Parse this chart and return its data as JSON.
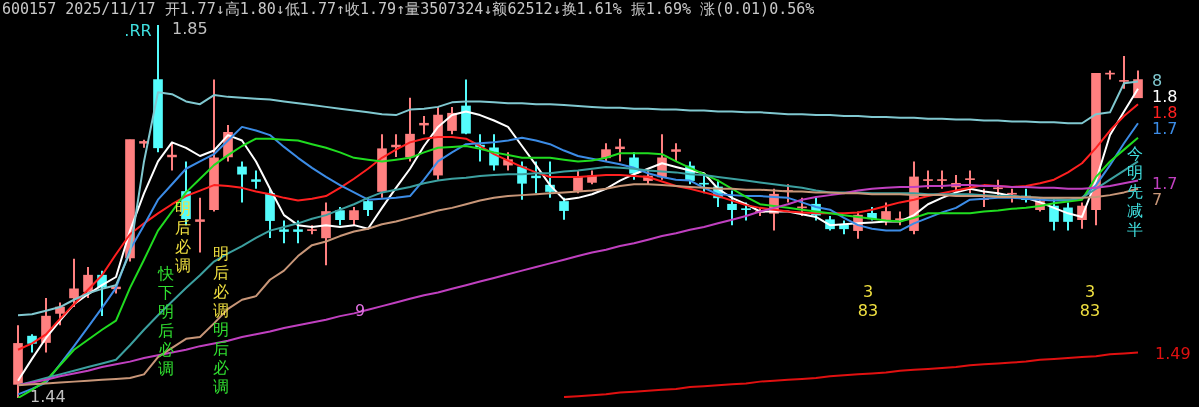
{
  "chart_data": {
    "type": "candlestick",
    "title": "600157 2025/11/17 开1.77↓高1.80↓低1.77↑收1.79↑量3507324↓额62512↓换1.61% 振1.69% 涨(0.01)0.56%",
    "categories": [
      null,
      null,
      null,
      null,
      null,
      null,
      null,
      null,
      null,
      null,
      null,
      null,
      null,
      null,
      null,
      null,
      null,
      null,
      null,
      null,
      null,
      null,
      null,
      null,
      null,
      null,
      null,
      null,
      null,
      null,
      null,
      null,
      null,
      null,
      null,
      null,
      null,
      null,
      null,
      null,
      null,
      null,
      null,
      null,
      null,
      null,
      null,
      null,
      null,
      null,
      null,
      null,
      null,
      null,
      null,
      null,
      null,
      null,
      null,
      null,
      null,
      null,
      null,
      null,
      null,
      null,
      null,
      null,
      null,
      null,
      null,
      null,
      null,
      null,
      null,
      null,
      null,
      null,
      null,
      null,
      null
    ],
    "ohlc": [
      [
        1.455,
        1.52,
        1.44,
        1.5
      ],
      [
        1.508,
        1.51,
        1.49,
        1.5
      ],
      [
        1.501,
        1.55,
        1.49,
        1.53
      ],
      [
        1.533,
        1.545,
        1.52,
        1.54
      ],
      [
        1.55,
        1.593,
        1.54,
        1.56
      ],
      [
        1.557,
        1.584,
        1.55,
        1.575
      ],
      [
        1.575,
        1.58,
        1.53,
        1.562
      ],
      [
        1.56,
        1.565,
        1.555,
        1.562
      ],
      [
        1.594,
        1.724,
        1.59,
        1.724
      ],
      [
        1.72,
        1.724,
        1.715,
        1.722
      ],
      [
        1.79,
        1.85,
        1.71,
        1.715
      ],
      [
        1.705,
        1.72,
        1.69,
        1.707
      ],
      [
        1.667,
        1.7,
        1.63,
        1.637
      ],
      [
        1.634,
        1.66,
        1.6,
        1.636
      ],
      [
        1.647,
        1.79,
        1.645,
        1.704
      ],
      [
        1.705,
        1.74,
        1.7,
        1.732
      ],
      [
        1.694,
        1.7,
        1.655,
        1.686
      ],
      [
        1.68,
        1.69,
        1.67,
        1.678
      ],
      [
        1.665,
        1.67,
        1.616,
        1.635
      ],
      [
        1.625,
        1.635,
        1.61,
        1.623
      ],
      [
        1.625,
        1.635,
        1.61,
        1.623
      ],
      [
        1.624,
        1.63,
        1.62,
        1.625
      ],
      [
        1.616,
        1.655,
        1.586,
        1.645
      ],
      [
        1.646,
        1.65,
        1.63,
        1.636
      ],
      [
        1.636,
        1.65,
        1.63,
        1.646
      ],
      [
        1.656,
        1.66,
        1.64,
        1.647
      ],
      [
        1.667,
        1.73,
        1.66,
        1.714
      ],
      [
        1.716,
        1.73,
        1.705,
        1.718
      ],
      [
        1.705,
        1.77,
        1.7,
        1.73
      ],
      [
        1.74,
        1.75,
        1.73,
        1.742
      ],
      [
        1.685,
        1.76,
        1.68,
        1.751
      ],
      [
        1.734,
        1.76,
        1.73,
        1.753
      ],
      [
        1.761,
        1.79,
        1.73,
        1.731
      ],
      [
        1.718,
        1.73,
        1.7,
        1.716
      ],
      [
        1.715,
        1.73,
        1.69,
        1.696
      ],
      [
        1.696,
        1.71,
        1.69,
        1.702
      ],
      [
        1.694,
        1.7,
        1.658,
        1.676
      ],
      [
        1.684,
        1.7,
        1.665,
        1.682
      ],
      [
        1.674,
        1.7,
        1.66,
        1.667
      ],
      [
        1.656,
        1.66,
        1.636,
        1.646
      ],
      [
        1.668,
        1.69,
        1.665,
        1.683
      ],
      [
        1.677,
        1.69,
        1.675,
        1.684
      ],
      [
        1.704,
        1.72,
        1.7,
        1.713
      ],
      [
        1.714,
        1.725,
        1.7,
        1.716
      ],
      [
        1.704,
        1.71,
        1.68,
        1.687
      ],
      [
        1.679,
        1.69,
        1.675,
        1.684
      ],
      [
        1.683,
        1.73,
        1.68,
        1.704
      ],
      [
        1.711,
        1.72,
        1.7,
        1.713
      ],
      [
        1.695,
        1.7,
        1.675,
        1.679
      ],
      [
        1.676,
        1.685,
        1.665,
        1.675
      ],
      [
        1.672,
        1.68,
        1.65,
        1.66
      ],
      [
        1.653,
        1.668,
        1.63,
        1.647
      ],
      [
        1.648,
        1.655,
        1.635,
        1.647
      ],
      [
        1.644,
        1.65,
        1.64,
        1.645
      ],
      [
        1.643,
        1.67,
        1.624,
        1.664
      ],
      [
        1.667,
        1.675,
        1.655,
        1.668
      ],
      [
        1.649,
        1.66,
        1.64,
        1.65
      ],
      [
        1.653,
        1.66,
        1.635,
        1.641
      ],
      [
        1.636,
        1.64,
        1.624,
        1.626
      ],
      [
        1.63,
        1.635,
        1.62,
        1.626
      ],
      [
        1.624,
        1.645,
        1.615,
        1.641
      ],
      [
        1.643,
        1.65,
        1.635,
        1.637
      ],
      [
        1.634,
        1.655,
        1.63,
        1.645
      ],
      [
        1.636,
        1.645,
        1.63,
        1.637
      ],
      [
        1.624,
        1.7,
        1.62,
        1.683
      ],
      [
        1.679,
        1.69,
        1.67,
        1.68
      ],
      [
        1.679,
        1.69,
        1.67,
        1.68
      ],
      [
        1.672,
        1.685,
        1.665,
        1.676
      ],
      [
        1.68,
        1.69,
        1.665,
        1.681
      ],
      [
        1.658,
        1.67,
        1.65,
        1.659
      ],
      [
        1.67,
        1.68,
        1.66,
        1.671
      ],
      [
        1.664,
        1.67,
        1.655,
        1.665
      ],
      [
        1.662,
        1.67,
        1.655,
        1.658
      ],
      [
        1.647,
        1.66,
        1.645,
        1.656
      ],
      [
        1.651,
        1.66,
        1.624,
        1.634
      ],
      [
        1.649,
        1.655,
        1.624,
        1.634
      ],
      [
        1.636,
        1.655,
        1.626,
        1.651
      ],
      [
        1.647,
        1.797,
        1.63,
        1.797
      ],
      [
        1.796,
        1.8,
        1.79,
        1.797
      ],
      [
        1.788,
        1.816,
        1.78,
        1.789
      ],
      [
        1.77,
        1.8,
        1.77,
        1.79
      ]
    ],
    "colors": [
      "#ff8080",
      "#54fcfc",
      "#ff8080",
      "#ff8080",
      "#ff8080",
      "#ff8080",
      "#54fcfc",
      "#ff8080",
      "#ff8080",
      "#ff8080",
      "#54fcfc",
      "#ff8080",
      "#54fcfc",
      "#ff8080",
      "#ff8080",
      "#ff8080",
      "#54fcfc",
      "#54fcfc",
      "#54fcfc",
      "#54fcfc",
      "#54fcfc",
      "#ff8080",
      "#ff8080",
      "#54fcfc",
      "#ff8080",
      "#54fcfc",
      "#ff8080",
      "#ff8080",
      "#ff8080",
      "#ff8080",
      "#ff8080",
      "#ff8080",
      "#54fcfc",
      "#54fcfc",
      "#54fcfc",
      "#ff8080",
      "#54fcfc",
      "#54fcfc",
      "#54fcfc",
      "#54fcfc",
      "#ff8080",
      "#ff8080",
      "#ff8080",
      "#ff8080",
      "#54fcfc",
      "#ff8080",
      "#ff8080",
      "#ff8080",
      "#54fcfc",
      "#54fcfc",
      "#54fcfc",
      "#54fcfc",
      "#54fcfc",
      "#ff8080",
      "#ff8080",
      "#ff8080",
      "#ff8080",
      "#54fcfc",
      "#54fcfc",
      "#54fcfc",
      "#ff8080",
      "#54fcfc",
      "#ff8080",
      "#ff8080",
      "#ff8080",
      "#ff8080",
      "#ff8080",
      "#ff8080",
      "#ff8080",
      "#ff8080",
      "#ff8080",
      "#ff8080",
      "#54fcfc",
      "#ff8080",
      "#54fcfc",
      "#54fcfc",
      "#ff8080",
      "#ff8080",
      "#ff8080",
      "#ff8080",
      "#ff8080"
    ],
    "series": [
      {
        "type": "line",
        "color": "#80c8d0",
        "values": [
          1.531,
          1.532,
          1.536,
          1.54,
          1.548,
          1.555,
          1.56,
          1.564,
          1.6,
          1.7,
          1.776,
          1.774,
          1.766,
          1.763,
          1.773,
          1.771,
          1.77,
          1.769,
          1.768,
          1.766,
          1.764,
          1.762,
          1.76,
          1.758,
          1.756,
          1.754,
          1.752,
          1.751,
          1.757,
          1.758,
          1.76,
          1.765,
          1.766,
          1.766,
          1.765,
          1.764,
          1.764,
          1.763,
          1.763,
          1.762,
          1.761,
          1.76,
          1.759,
          1.759,
          1.758,
          1.758,
          1.757,
          1.757,
          1.756,
          1.756,
          1.755,
          1.755,
          1.754,
          1.754,
          1.753,
          1.752,
          1.752,
          1.751,
          1.751,
          1.75,
          1.75,
          1.749,
          1.749,
          1.748,
          1.748,
          1.747,
          1.747,
          1.746,
          1.746,
          1.745,
          1.745,
          1.744,
          1.744,
          1.743,
          1.743,
          1.742,
          1.742,
          1.752,
          1.754,
          1.786,
          1.788
        ]
      },
      {
        "type": "line",
        "color": "#c89678",
        "values": [
          1.454,
          1.455,
          1.456,
          1.457,
          1.458,
          1.459,
          1.46,
          1.461,
          1.462,
          1.466,
          1.485,
          1.495,
          1.505,
          1.507,
          1.522,
          1.538,
          1.548,
          1.552,
          1.57,
          1.58,
          1.596,
          1.608,
          1.612,
          1.618,
          1.623,
          1.626,
          1.631,
          1.634,
          1.638,
          1.642,
          1.646,
          1.649,
          1.653,
          1.657,
          1.66,
          1.662,
          1.663,
          1.664,
          1.665,
          1.666,
          1.667,
          1.668,
          1.67,
          1.673,
          1.675,
          1.675,
          1.674,
          1.673,
          1.672,
          1.671,
          1.67,
          1.67,
          1.669,
          1.669,
          1.668,
          1.667,
          1.667,
          1.666,
          1.666,
          1.665,
          1.665,
          1.664,
          1.664,
          1.664,
          1.663,
          1.663,
          1.663,
          1.662,
          1.662,
          1.662,
          1.661,
          1.661,
          1.661,
          1.66,
          1.66,
          1.66,
          1.66,
          1.661,
          1.663,
          1.666,
          1.67
        ]
      },
      {
        "type": "line",
        "color": "#c040c0",
        "values": [
          1.454,
          1.457,
          1.46,
          1.464,
          1.467,
          1.47,
          1.474,
          1.477,
          1.48,
          1.484,
          1.487,
          1.49,
          1.493,
          1.497,
          1.5,
          1.503,
          1.507,
          1.51,
          1.513,
          1.517,
          1.52,
          1.523,
          1.526,
          1.53,
          1.533,
          1.537,
          1.541,
          1.545,
          1.549,
          1.553,
          1.556,
          1.56,
          1.564,
          1.568,
          1.572,
          1.576,
          1.58,
          1.584,
          1.588,
          1.592,
          1.596,
          1.6,
          1.603,
          1.607,
          1.61,
          1.614,
          1.618,
          1.621,
          1.625,
          1.628,
          1.632,
          1.636,
          1.64,
          1.645,
          1.649,
          1.653,
          1.658,
          1.661,
          1.663,
          1.665,
          1.668,
          1.67,
          1.671,
          1.672,
          1.672,
          1.673,
          1.673,
          1.674,
          1.674,
          1.673,
          1.673,
          1.672,
          1.672,
          1.671,
          1.671,
          1.67,
          1.67,
          1.671,
          1.673,
          1.676,
          1.679
        ]
      },
      {
        "type": "line",
        "color": "#3ca0a0",
        "values": [
          1.454,
          1.458,
          1.462,
          1.466,
          1.47,
          1.474,
          1.478,
          1.482,
          1.498,
          1.515,
          1.531,
          1.546,
          1.561,
          1.575,
          1.59,
          1.599,
          1.607,
          1.616,
          1.624,
          1.628,
          1.632,
          1.637,
          1.641,
          1.647,
          1.653,
          1.66,
          1.666,
          1.669,
          1.672,
          1.676,
          1.679,
          1.681,
          1.682,
          1.684,
          1.685,
          1.686,
          1.686,
          1.687,
          1.687,
          1.689,
          1.69,
          1.692,
          1.694,
          1.693,
          1.692,
          1.69,
          1.689,
          1.688,
          1.686,
          1.685,
          1.683,
          1.681,
          1.679,
          1.677,
          1.675,
          1.673,
          1.671,
          1.668,
          1.666,
          1.666,
          1.666,
          1.665,
          1.665,
          1.665,
          1.665,
          1.664,
          1.664,
          1.664,
          1.664,
          1.663,
          1.662,
          1.662,
          1.661,
          1.66,
          1.659,
          1.658,
          1.66,
          1.67,
          1.68,
          1.69,
          1.7
        ]
      },
      {
        "type": "line",
        "color": "#e01010",
        "values": [
          null,
          null,
          null,
          null,
          null,
          null,
          null,
          null,
          null,
          null,
          null,
          null,
          null,
          null,
          null,
          null,
          null,
          null,
          null,
          null,
          null,
          null,
          null,
          null,
          null,
          null,
          null,
          null,
          null,
          null,
          null,
          null,
          null,
          null,
          null,
          null,
          null,
          null,
          null,
          1.441,
          1.442,
          1.443,
          1.444,
          1.446,
          1.447,
          1.448,
          1.449,
          1.45,
          1.452,
          1.453,
          1.454,
          1.455,
          1.456,
          1.458,
          1.459,
          1.46,
          1.461,
          1.462,
          1.464,
          1.465,
          1.466,
          1.467,
          1.468,
          1.47,
          1.471,
          1.472,
          1.473,
          1.474,
          1.476,
          1.477,
          1.478,
          1.479,
          1.48,
          1.482,
          1.483,
          1.484,
          1.485,
          1.486,
          1.488,
          1.489,
          1.49
        ]
      },
      {
        "type": "line",
        "color": "#20dc20",
        "values": [
          1.44,
          1.449,
          1.459,
          1.476,
          1.493,
          1.504,
          1.515,
          1.525,
          1.561,
          1.592,
          1.624,
          1.645,
          1.666,
          1.681,
          1.696,
          1.707,
          1.717,
          1.725,
          1.725,
          1.724,
          1.723,
          1.719,
          1.715,
          1.71,
          1.704,
          1.702,
          1.7,
          1.702,
          1.704,
          1.71,
          1.715,
          1.716,
          1.717,
          1.714,
          1.71,
          1.707,
          1.704,
          1.704,
          1.704,
          1.702,
          1.7,
          1.701,
          1.704,
          1.709,
          1.709,
          1.709,
          1.708,
          1.7,
          1.693,
          1.686,
          1.679,
          1.67,
          1.661,
          1.653,
          1.651,
          1.649,
          1.647,
          1.645,
          1.643,
          1.641,
          1.639,
          1.637,
          1.635,
          1.634,
          1.638,
          1.643,
          1.643,
          1.643,
          1.643,
          1.645,
          1.646,
          1.648,
          1.649,
          1.651,
          1.654,
          1.656,
          1.658,
          1.683,
          1.7,
          1.713,
          1.726
        ]
      },
      {
        "type": "line",
        "color": "#3c8ce6",
        "values": [
          1.444,
          1.45,
          1.457,
          1.477,
          1.497,
          1.518,
          1.539,
          1.561,
          1.603,
          1.63,
          1.658,
          1.675,
          1.692,
          1.7,
          1.708,
          1.723,
          1.738,
          1.734,
          1.729,
          1.716,
          1.704,
          1.693,
          1.683,
          1.674,
          1.666,
          1.658,
          1.659,
          1.66,
          1.662,
          1.68,
          1.7,
          1.71,
          1.719,
          1.72,
          1.721,
          1.723,
          1.726,
          1.723,
          1.719,
          1.712,
          1.706,
          1.703,
          1.7,
          1.697,
          1.693,
          1.687,
          1.683,
          1.68,
          1.679,
          1.671,
          1.664,
          1.663,
          1.662,
          1.662,
          1.661,
          1.66,
          1.655,
          1.65,
          1.647,
          1.638,
          1.63,
          1.626,
          1.624,
          1.624,
          1.632,
          1.638,
          1.644,
          1.649,
          1.658,
          1.659,
          1.66,
          1.66,
          1.659,
          1.658,
          1.657,
          1.657,
          1.66,
          1.674,
          1.696,
          1.72,
          1.742
        ]
      },
      {
        "type": "line",
        "color": "#ff2020",
        "values": [
          1.493,
          1.5,
          1.51,
          1.527,
          1.543,
          1.559,
          1.575,
          1.598,
          1.62,
          1.632,
          1.643,
          1.653,
          1.662,
          1.668,
          1.674,
          1.673,
          1.671,
          1.667,
          1.664,
          1.66,
          1.657,
          1.659,
          1.662,
          1.671,
          1.681,
          1.692,
          1.704,
          1.713,
          1.721,
          1.725,
          1.727,
          1.727,
          1.725,
          1.717,
          1.708,
          1.701,
          1.694,
          1.688,
          1.683,
          1.683,
          1.683,
          1.684,
          1.685,
          1.685,
          1.684,
          1.683,
          1.678,
          1.673,
          1.67,
          1.666,
          1.662,
          1.657,
          1.652,
          1.649,
          1.647,
          1.645,
          1.644,
          1.643,
          1.643,
          1.643,
          1.644,
          1.647,
          1.651,
          1.655,
          1.658,
          1.662,
          1.665,
          1.668,
          1.671,
          1.674,
          1.673,
          1.672,
          1.673,
          1.676,
          1.68,
          1.688,
          1.698,
          1.715,
          1.734,
          1.75,
          1.763
        ]
      },
      {
        "type": "line",
        "color": "#ffffff",
        "values": [
          1.459,
          1.483,
          1.506,
          1.525,
          1.543,
          1.554,
          1.564,
          1.573,
          1.624,
          1.665,
          1.7,
          1.721,
          1.715,
          1.706,
          1.712,
          1.729,
          1.723,
          1.7,
          1.67,
          1.641,
          1.63,
          1.628,
          1.63,
          1.628,
          1.63,
          1.626,
          1.649,
          1.671,
          1.692,
          1.717,
          1.738,
          1.751,
          1.755,
          1.751,
          1.745,
          1.738,
          1.717,
          1.696,
          1.674,
          1.658,
          1.66,
          1.664,
          1.67,
          1.679,
          1.686,
          1.692,
          1.698,
          1.694,
          1.69,
          1.687,
          1.67,
          1.66,
          1.653,
          1.645,
          1.645,
          1.645,
          1.642,
          1.639,
          1.63,
          1.631,
          1.632,
          1.633,
          1.634,
          1.634,
          1.641,
          1.653,
          1.66,
          1.666,
          1.67,
          1.667,
          1.665,
          1.662,
          1.66,
          1.655,
          1.649,
          1.643,
          1.639,
          1.679,
          1.729,
          1.755,
          1.78
        ]
      }
    ],
    "annotations": [
      "1.85",
      "1.44",
      ".RR",
      "明后必调",
      "快下明后必调",
      "明后必调",
      "明后必调",
      "9",
      "3",
      "83",
      "3",
      "83",
      "今明先减半",
      "8",
      "1.8",
      "1.8",
      "1.7",
      "1.7",
      "7",
      "1.49"
    ]
  }
}
